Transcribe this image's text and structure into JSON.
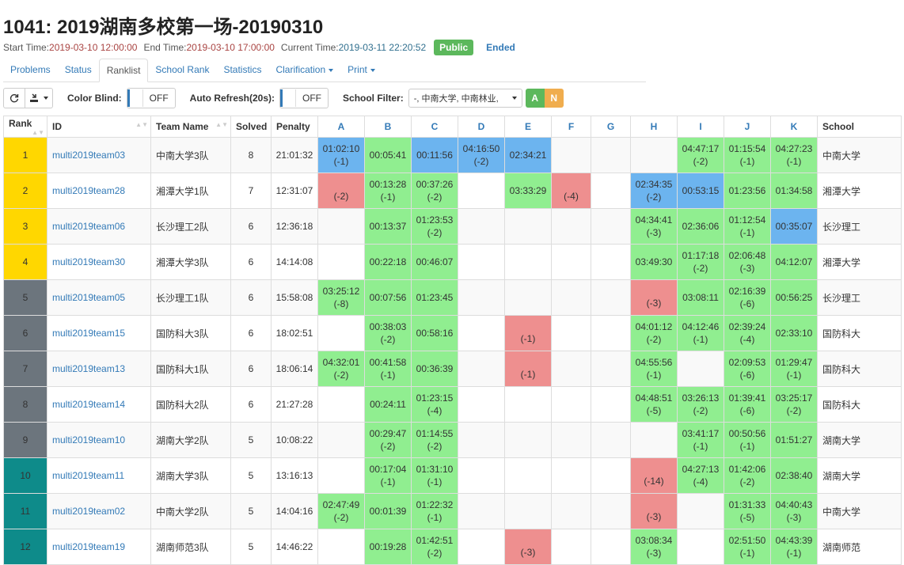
{
  "contest": {
    "title": "1041: 2019湖南多校第一场-20190310",
    "start_label": "Start Time:",
    "start_time": "2019-03-10 12:00:00",
    "end_label": "End Time:",
    "end_time": "2019-03-10 17:00:00",
    "current_label": "Current Time:",
    "current_time": "2019-03-11 22:20:52",
    "visibility": "Public",
    "status": "Ended"
  },
  "tabs": [
    {
      "label": "Problems"
    },
    {
      "label": "Status"
    },
    {
      "label": "Ranklist"
    },
    {
      "label": "School Rank"
    },
    {
      "label": "Statistics"
    },
    {
      "label": "Clarification"
    },
    {
      "label": "Print"
    }
  ],
  "toolbar": {
    "color_blind_label": "Color Blind:",
    "color_blind_value": "OFF",
    "auto_refresh_label": "Auto Refresh(20s):",
    "auto_refresh_value": "OFF",
    "school_filter_label": "School Filter:",
    "school_filter_value": "-, 中南大学, 中南林业,",
    "filter_a": "A",
    "filter_n": "N"
  },
  "headers": {
    "rank": "Rank",
    "id": "ID",
    "team": "Team Name",
    "solved": "Solved",
    "penalty": "Penalty",
    "school": "School",
    "problems": [
      "A",
      "B",
      "C",
      "D",
      "E",
      "F",
      "G",
      "H",
      "I",
      "J",
      "K"
    ]
  },
  "colors": {
    "gold": "#ffd700",
    "silver": "#6c757d",
    "bronze": "#0e8b8a",
    "accepted": "#90ee90",
    "first_blood": "#6cb4ef",
    "wrong": "#ee8f8f"
  },
  "rows": [
    {
      "rank": "1",
      "medal": "gold",
      "id": "multi2019team03",
      "team": "中南大学3队",
      "solved": "8",
      "penalty": "21:01:32",
      "school": "中南大学",
      "cells": [
        {
          "s": "fb",
          "t": "01:02:10",
          "f": "(-1)"
        },
        {
          "s": "ac",
          "t": "00:05:41",
          "f": ""
        },
        {
          "s": "fb",
          "t": "00:11:56",
          "f": ""
        },
        {
          "s": "fb",
          "t": "04:16:50",
          "f": "(-2)"
        },
        {
          "s": "fb",
          "t": "02:34:21",
          "f": ""
        },
        {
          "s": "",
          "t": "",
          "f": ""
        },
        {
          "s": "",
          "t": "",
          "f": ""
        },
        {
          "s": "",
          "t": "",
          "f": ""
        },
        {
          "s": "ac",
          "t": "04:47:17",
          "f": "(-2)"
        },
        {
          "s": "ac",
          "t": "01:15:54",
          "f": "(-1)"
        },
        {
          "s": "ac",
          "t": "04:27:23",
          "f": "(-1)"
        }
      ]
    },
    {
      "rank": "2",
      "medal": "gold",
      "id": "multi2019team28",
      "team": "湘潭大学1队",
      "solved": "7",
      "penalty": "12:31:07",
      "school": "湘潭大学",
      "cells": [
        {
          "s": "wa",
          "t": "",
          "f": "(-2)"
        },
        {
          "s": "ac",
          "t": "00:13:28",
          "f": "(-1)"
        },
        {
          "s": "ac",
          "t": "00:37:26",
          "f": "(-2)"
        },
        {
          "s": "",
          "t": "",
          "f": ""
        },
        {
          "s": "ac",
          "t": "03:33:29",
          "f": ""
        },
        {
          "s": "wa",
          "t": "",
          "f": "(-4)"
        },
        {
          "s": "",
          "t": "",
          "f": ""
        },
        {
          "s": "fb",
          "t": "02:34:35",
          "f": "(-2)"
        },
        {
          "s": "fb",
          "t": "00:53:15",
          "f": ""
        },
        {
          "s": "ac",
          "t": "01:23:56",
          "f": ""
        },
        {
          "s": "ac",
          "t": "01:34:58",
          "f": ""
        }
      ]
    },
    {
      "rank": "3",
      "medal": "gold",
      "id": "multi2019team06",
      "team": "长沙理工2队",
      "solved": "6",
      "penalty": "12:36:18",
      "school": "长沙理工",
      "cells": [
        {
          "s": "",
          "t": "",
          "f": ""
        },
        {
          "s": "ac",
          "t": "00:13:37",
          "f": ""
        },
        {
          "s": "ac",
          "t": "01:23:53",
          "f": "(-2)"
        },
        {
          "s": "",
          "t": "",
          "f": ""
        },
        {
          "s": "",
          "t": "",
          "f": ""
        },
        {
          "s": "",
          "t": "",
          "f": ""
        },
        {
          "s": "",
          "t": "",
          "f": ""
        },
        {
          "s": "ac",
          "t": "04:34:41",
          "f": "(-3)"
        },
        {
          "s": "ac",
          "t": "02:36:06",
          "f": ""
        },
        {
          "s": "ac",
          "t": "01:12:54",
          "f": "(-1)"
        },
        {
          "s": "fb",
          "t": "00:35:07",
          "f": ""
        }
      ]
    },
    {
      "rank": "4",
      "medal": "gold",
      "id": "multi2019team30",
      "team": "湘潭大学3队",
      "solved": "6",
      "penalty": "14:14:08",
      "school": "湘潭大学",
      "cells": [
        {
          "s": "",
          "t": "",
          "f": ""
        },
        {
          "s": "ac",
          "t": "00:22:18",
          "f": ""
        },
        {
          "s": "ac",
          "t": "00:46:07",
          "f": ""
        },
        {
          "s": "",
          "t": "",
          "f": ""
        },
        {
          "s": "",
          "t": "",
          "f": ""
        },
        {
          "s": "",
          "t": "",
          "f": ""
        },
        {
          "s": "",
          "t": "",
          "f": ""
        },
        {
          "s": "ac",
          "t": "03:49:30",
          "f": ""
        },
        {
          "s": "ac",
          "t": "01:17:18",
          "f": "(-2)"
        },
        {
          "s": "ac",
          "t": "02:06:48",
          "f": "(-3)"
        },
        {
          "s": "ac",
          "t": "04:12:07",
          "f": ""
        }
      ]
    },
    {
      "rank": "5",
      "medal": "silver",
      "id": "multi2019team05",
      "team": "长沙理工1队",
      "solved": "6",
      "penalty": "15:58:08",
      "school": "长沙理工",
      "cells": [
        {
          "s": "ac",
          "t": "03:25:12",
          "f": "(-8)"
        },
        {
          "s": "ac",
          "t": "00:07:56",
          "f": ""
        },
        {
          "s": "ac",
          "t": "01:23:45",
          "f": ""
        },
        {
          "s": "",
          "t": "",
          "f": ""
        },
        {
          "s": "",
          "t": "",
          "f": ""
        },
        {
          "s": "",
          "t": "",
          "f": ""
        },
        {
          "s": "",
          "t": "",
          "f": ""
        },
        {
          "s": "wa",
          "t": "",
          "f": "(-3)"
        },
        {
          "s": "ac",
          "t": "03:08:11",
          "f": ""
        },
        {
          "s": "ac",
          "t": "02:16:39",
          "f": "(-6)"
        },
        {
          "s": "ac",
          "t": "00:56:25",
          "f": ""
        }
      ]
    },
    {
      "rank": "6",
      "medal": "silver",
      "id": "multi2019team15",
      "team": "国防科大3队",
      "solved": "6",
      "penalty": "18:02:51",
      "school": "国防科大",
      "cells": [
        {
          "s": "",
          "t": "",
          "f": ""
        },
        {
          "s": "ac",
          "t": "00:38:03",
          "f": "(-2)"
        },
        {
          "s": "ac",
          "t": "00:58:16",
          "f": ""
        },
        {
          "s": "",
          "t": "",
          "f": ""
        },
        {
          "s": "wa",
          "t": "",
          "f": "(-1)"
        },
        {
          "s": "",
          "t": "",
          "f": ""
        },
        {
          "s": "",
          "t": "",
          "f": ""
        },
        {
          "s": "ac",
          "t": "04:01:12",
          "f": "(-2)"
        },
        {
          "s": "ac",
          "t": "04:12:46",
          "f": "(-1)"
        },
        {
          "s": "ac",
          "t": "02:39:24",
          "f": "(-4)"
        },
        {
          "s": "ac",
          "t": "02:33:10",
          "f": ""
        }
      ]
    },
    {
      "rank": "7",
      "medal": "silver",
      "id": "multi2019team13",
      "team": "国防科大1队",
      "solved": "6",
      "penalty": "18:06:14",
      "school": "国防科大",
      "cells": [
        {
          "s": "ac",
          "t": "04:32:01",
          "f": "(-2)"
        },
        {
          "s": "ac",
          "t": "00:41:58",
          "f": "(-1)"
        },
        {
          "s": "ac",
          "t": "00:36:39",
          "f": ""
        },
        {
          "s": "",
          "t": "",
          "f": ""
        },
        {
          "s": "wa",
          "t": "",
          "f": "(-1)"
        },
        {
          "s": "",
          "t": "",
          "f": ""
        },
        {
          "s": "",
          "t": "",
          "f": ""
        },
        {
          "s": "ac",
          "t": "04:55:56",
          "f": "(-1)"
        },
        {
          "s": "",
          "t": "",
          "f": ""
        },
        {
          "s": "ac",
          "t": "02:09:53",
          "f": "(-6)"
        },
        {
          "s": "ac",
          "t": "01:29:47",
          "f": "(-1)"
        }
      ]
    },
    {
      "rank": "8",
      "medal": "silver",
      "id": "multi2019team14",
      "team": "国防科大2队",
      "solved": "6",
      "penalty": "21:27:28",
      "school": "国防科大",
      "cells": [
        {
          "s": "",
          "t": "",
          "f": ""
        },
        {
          "s": "ac",
          "t": "00:24:11",
          "f": ""
        },
        {
          "s": "ac",
          "t": "01:23:15",
          "f": "(-4)"
        },
        {
          "s": "",
          "t": "",
          "f": ""
        },
        {
          "s": "",
          "t": "",
          "f": ""
        },
        {
          "s": "",
          "t": "",
          "f": ""
        },
        {
          "s": "",
          "t": "",
          "f": ""
        },
        {
          "s": "ac",
          "t": "04:48:51",
          "f": "(-5)"
        },
        {
          "s": "ac",
          "t": "03:26:13",
          "f": "(-2)"
        },
        {
          "s": "ac",
          "t": "01:39:41",
          "f": "(-6)"
        },
        {
          "s": "ac",
          "t": "03:25:17",
          "f": "(-2)"
        }
      ]
    },
    {
      "rank": "9",
      "medal": "silver",
      "id": "multi2019team10",
      "team": "湖南大学2队",
      "solved": "5",
      "penalty": "10:08:22",
      "school": "湖南大学",
      "cells": [
        {
          "s": "",
          "t": "",
          "f": ""
        },
        {
          "s": "ac",
          "t": "00:29:47",
          "f": "(-2)"
        },
        {
          "s": "ac",
          "t": "01:14:55",
          "f": "(-2)"
        },
        {
          "s": "",
          "t": "",
          "f": ""
        },
        {
          "s": "",
          "t": "",
          "f": ""
        },
        {
          "s": "",
          "t": "",
          "f": ""
        },
        {
          "s": "",
          "t": "",
          "f": ""
        },
        {
          "s": "",
          "t": "",
          "f": ""
        },
        {
          "s": "ac",
          "t": "03:41:17",
          "f": "(-1)"
        },
        {
          "s": "ac",
          "t": "00:50:56",
          "f": "(-1)"
        },
        {
          "s": "ac",
          "t": "01:51:27",
          "f": ""
        }
      ]
    },
    {
      "rank": "10",
      "medal": "bronze",
      "id": "multi2019team11",
      "team": "湖南大学3队",
      "solved": "5",
      "penalty": "13:16:13",
      "school": "湖南大学",
      "cells": [
        {
          "s": "",
          "t": "",
          "f": ""
        },
        {
          "s": "ac",
          "t": "00:17:04",
          "f": "(-1)"
        },
        {
          "s": "ac",
          "t": "01:31:10",
          "f": "(-1)"
        },
        {
          "s": "",
          "t": "",
          "f": ""
        },
        {
          "s": "",
          "t": "",
          "f": ""
        },
        {
          "s": "",
          "t": "",
          "f": ""
        },
        {
          "s": "",
          "t": "",
          "f": ""
        },
        {
          "s": "wa",
          "t": "",
          "f": "(-14)"
        },
        {
          "s": "ac",
          "t": "04:27:13",
          "f": "(-4)"
        },
        {
          "s": "ac",
          "t": "01:42:06",
          "f": "(-2)"
        },
        {
          "s": "ac",
          "t": "02:38:40",
          "f": ""
        }
      ]
    },
    {
      "rank": "11",
      "medal": "bronze",
      "id": "multi2019team02",
      "team": "中南大学2队",
      "solved": "5",
      "penalty": "14:04:16",
      "school": "中南大学",
      "cells": [
        {
          "s": "ac",
          "t": "02:47:49",
          "f": "(-2)"
        },
        {
          "s": "ac",
          "t": "00:01:39",
          "f": ""
        },
        {
          "s": "ac",
          "t": "01:22:32",
          "f": "(-1)"
        },
        {
          "s": "",
          "t": "",
          "f": ""
        },
        {
          "s": "",
          "t": "",
          "f": ""
        },
        {
          "s": "",
          "t": "",
          "f": ""
        },
        {
          "s": "",
          "t": "",
          "f": ""
        },
        {
          "s": "wa",
          "t": "",
          "f": "(-3)"
        },
        {
          "s": "",
          "t": "",
          "f": ""
        },
        {
          "s": "ac",
          "t": "01:31:33",
          "f": "(-5)"
        },
        {
          "s": "ac",
          "t": "04:40:43",
          "f": "(-3)"
        }
      ]
    },
    {
      "rank": "12",
      "medal": "bronze",
      "id": "multi2019team19",
      "team": "湖南师范3队",
      "solved": "5",
      "penalty": "14:46:22",
      "school": "湖南师范",
      "cells": [
        {
          "s": "",
          "t": "",
          "f": ""
        },
        {
          "s": "ac",
          "t": "00:19:28",
          "f": ""
        },
        {
          "s": "ac",
          "t": "01:42:51",
          "f": "(-2)"
        },
        {
          "s": "",
          "t": "",
          "f": ""
        },
        {
          "s": "wa",
          "t": "",
          "f": "(-3)"
        },
        {
          "s": "",
          "t": "",
          "f": ""
        },
        {
          "s": "",
          "t": "",
          "f": ""
        },
        {
          "s": "ac",
          "t": "03:08:34",
          "f": "(-3)"
        },
        {
          "s": "",
          "t": "",
          "f": ""
        },
        {
          "s": "ac",
          "t": "02:51:50",
          "f": "(-1)"
        },
        {
          "s": "ac",
          "t": "04:43:39",
          "f": "(-1)"
        }
      ]
    }
  ]
}
